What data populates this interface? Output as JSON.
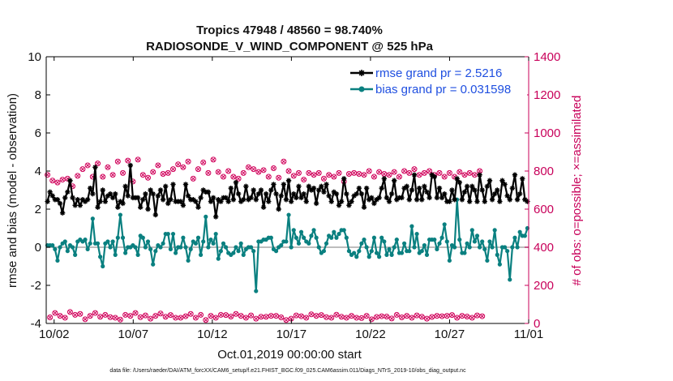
{
  "chart_data": {
    "type": "line",
    "title": "Tropics 47948 / 48560 = 98.740%",
    "subtitle": "RADIOSONDE_V_WIND_COMPONENT @ 525 hPa",
    "xlabel": "Oct.01,2019 00:00:00 start",
    "ylabel": "rmse and bias (model - observation)",
    "ylabel_right": "# of obs: o=possible; ×=assimilated",
    "xlim": [
      0.5,
      31.0
    ],
    "ylim": [
      -4,
      10
    ],
    "ylim_right": [
      0,
      1400
    ],
    "x_ticks": [
      1,
      6,
      11,
      16,
      21,
      26,
      31
    ],
    "x_tick_labels": [
      "10/02",
      "10/07",
      "10/12",
      "10/17",
      "10/22",
      "10/27",
      "11/01"
    ],
    "y_ticks": [
      -4,
      -2,
      0,
      2,
      4,
      6,
      8,
      10
    ],
    "y_ticks_right": [
      0,
      200,
      400,
      600,
      800,
      1000,
      1200,
      1400
    ],
    "zero_line": 0,
    "colors": {
      "rmse": "#000000",
      "bias": "#0a8080",
      "obs": "#d0005a",
      "zero": "#bdbdbd",
      "right_axis": "#c8005a",
      "legend_text": "#1f4fe0"
    },
    "legend": {
      "position": "top-right",
      "entries": [
        {
          "name": "rmse grand pr = 2.5216",
          "series": "rmse"
        },
        {
          "name": "bias grand pr = 0.031598",
          "series": "bias"
        }
      ]
    },
    "series": [
      {
        "name": "rmse",
        "axis": "left",
        "marker": "asterisk",
        "values": [
          2.4,
          2.9,
          2.7,
          2.5,
          2.5,
          2.3,
          1.8,
          2.6,
          2.9,
          3.5,
          2.6,
          2.2,
          2.5,
          2.2,
          2.5,
          2.4,
          2.5,
          3.1,
          2.8,
          4.2,
          2.1,
          2.4,
          3.0,
          2.4,
          2.7,
          2.8,
          2.6,
          2.8,
          2.1,
          2.4,
          2.3,
          3.2,
          2.7,
          4.3,
          2.6,
          2.6,
          2.6,
          2.1,
          2.5,
          2.8,
          2.0,
          3.0,
          2.8,
          1.7,
          2.7,
          3.0,
          2.5,
          3.2,
          2.3,
          2.5,
          3.3,
          2.4,
          2.4,
          2.4,
          2.2,
          3.3,
          2.7,
          2.5,
          2.5,
          2.4,
          2.1,
          2.6,
          3.0,
          2.9,
          2.9,
          2.4,
          2.6,
          1.6,
          2.5,
          2.4,
          2.6,
          2.6,
          2.4,
          3.1,
          2.5,
          3.4,
          2.8,
          2.4,
          2.5,
          3.2,
          2.5,
          2.6,
          3.0,
          2.5,
          2.8,
          3.0,
          2.1,
          2.8,
          2.4,
          3.0,
          3.3,
          2.8,
          2.0,
          2.7,
          3.3,
          2.5,
          3.5,
          2.4,
          2.8,
          2.6,
          3.2,
          2.6,
          2.8,
          2.4,
          3.2,
          3.0,
          3.1,
          2.3,
          3.0,
          3.2,
          2.9,
          3.3,
          2.7,
          2.4,
          2.9,
          2.8,
          2.2,
          2.4,
          3.6,
          2.8,
          2.2,
          2.4,
          2.7,
          2.8,
          3.1,
          2.8,
          2.1,
          3.1,
          2.5,
          2.6,
          2.3,
          2.5,
          2.6,
          3.1,
          3.6,
          2.6,
          2.4,
          2.8,
          3.5,
          2.5,
          2.6,
          2.6,
          3.1,
          3.2,
          2.5,
          3.0,
          3.8,
          2.5,
          3.1,
          2.5,
          3.2,
          2.9,
          2.6,
          3.8,
          3.7,
          2.6,
          3.1,
          2.6,
          2.8,
          2.4,
          2.4,
          3.0,
          2.5,
          3.6,
          3.4,
          2.5,
          2.9,
          3.2,
          2.4,
          3.2,
          3.0,
          2.4,
          3.8,
          3.0,
          2.4,
          3.2,
          3.5,
          2.5,
          2.8,
          3.0,
          2.4,
          3.5,
          3.3,
          2.7,
          2.5,
          3.1,
          3.8,
          2.5,
          2.8,
          3.6,
          2.5,
          2.4
        ]
      },
      {
        "name": "bias",
        "axis": "left",
        "marker": "circle",
        "values": [
          0.1,
          0.1,
          0.1,
          -0.1,
          -0.7,
          0.0,
          0.2,
          0.3,
          -0.2,
          0.1,
          0.0,
          -0.4,
          0.3,
          0.4,
          0.3,
          0.4,
          -0.1,
          0.2,
          1.5,
          0.2,
          0.2,
          -0.5,
          -1.0,
          0.2,
          0.3,
          0.0,
          0.3,
          -0.4,
          0.5,
          1.7,
          0.5,
          -0.3,
          0.0,
          0.0,
          0.1,
          0.0,
          -0.4,
          0.6,
          0.5,
          0.0,
          0.3,
          -0.1,
          -0.9,
          -0.2,
          0.1,
          0.0,
          0.2,
          0.7,
          0.7,
          -0.1,
          0.7,
          -0.3,
          0.0,
          0.0,
          0.5,
          0.0,
          -0.7,
          -0.1,
          0.3,
          0.2,
          0.5,
          -0.4,
          0.3,
          1.6,
          0.0,
          0.4,
          0.2,
          0.7,
          -0.6,
          -0.2,
          0.2,
          0.0,
          -0.3,
          -0.4,
          -0.3,
          0.0,
          -0.2,
          0.2,
          -0.4,
          -0.1,
          0.0,
          0.0,
          -0.2,
          -2.3,
          0.3,
          0.3,
          0.4,
          0.4,
          0.5,
          0.5,
          -0.1,
          -0.2,
          0.0,
          0.1,
          0.3,
          0.3,
          1.7,
          0.0,
          0.9,
          0.5,
          0.2,
          0.8,
          0.5,
          0.3,
          0.2,
          0.6,
          0.9,
          0.5,
          0.0,
          -0.3,
          -0.2,
          0.2,
          0.6,
          0.5,
          0.8,
          0.5,
          0.7,
          0.9,
          0.9,
          0.5,
          -0.2,
          -0.4,
          -0.3,
          -0.5,
          -0.2,
          0.2,
          0.4,
          0.0,
          -0.5,
          -0.2,
          0.5,
          -0.3,
          -0.5,
          0.5,
          0.3,
          -0.4,
          -0.1,
          -0.4,
          0.0,
          0.4,
          -0.3,
          -0.3,
          0.2,
          -0.2,
          -0.2,
          1.1,
          0.0,
          0.7,
          -0.3,
          -0.2,
          0.1,
          -0.4,
          0.4,
          0.4,
          0.4,
          -0.1,
          0.2,
          0.5,
          1.2,
          0.3,
          -0.7,
          0.1,
          0.0,
          2.5,
          0.4,
          -0.3,
          -0.3,
          0.2,
          0.0,
          0.9,
          0.3,
          0.6,
          0.0,
          0.3,
          -0.1,
          -0.7,
          0.3,
          0.0,
          0.9,
          -0.4,
          -0.9,
          0.0,
          0.0,
          -0.2,
          -1.7,
          0.0,
          0.5,
          0.0,
          0.8,
          0.6,
          0.6,
          1.0
        ]
      },
      {
        "name": "obs possible",
        "axis": "right",
        "marker": "o",
        "values": [
          780,
          32,
          750,
          55,
          740,
          40,
          755,
          30,
          760,
          60,
          720,
          45,
          775,
          50,
          810,
          22,
          830,
          40,
          770,
          55,
          840,
          35,
          770,
          45,
          820,
          33,
          780,
          30,
          850,
          20,
          790,
          45,
          855,
          40,
          745,
          55,
          860,
          33,
          780,
          42,
          765,
          25,
          795,
          40,
          830,
          52,
          785,
          35,
          790,
          44,
          810,
          30,
          835,
          30,
          820,
          38,
          850,
          50,
          760,
          30,
          810,
          45,
          845,
          18,
          790,
          40,
          860,
          30,
          795,
          45,
          770,
          44,
          800,
          36,
          770,
          50,
          760,
          40,
          790,
          30,
          820,
          42,
          810,
          25,
          795,
          35,
          805,
          35,
          770,
          40,
          815,
          40,
          765,
          32,
          850,
          18,
          800,
          25,
          775,
          42,
          790,
          38,
          755,
          30,
          790,
          48,
          780,
          40,
          790,
          44,
          760,
          33,
          780,
          30,
          770,
          46,
          790,
          35,
          745,
          30,
          785,
          40,
          790,
          30,
          785,
          28,
          780,
          40,
          800,
          22,
          770,
          34,
          795,
          38,
          785,
          36,
          780,
          26,
          795,
          45,
          770,
          32,
          800,
          40,
          790,
          30,
          810,
          42,
          780,
          35,
          790,
          25,
          800,
          34,
          780,
          40,
          790,
          38,
          770,
          40,
          790,
          44,
          770,
          30,
          795,
          40,
          780,
          36,
          790,
          30,
          780,
          42,
          800,
          38
        ]
      }
    ]
  },
  "footnote": "data file: /Users/raeder/DAI/ATM_forcXX/CAM6_setup/f.e21.FHIST_BGC.f09_025.CAM6assim.011/Diags_NTrS_2019-10/obs_diag_output.nc"
}
